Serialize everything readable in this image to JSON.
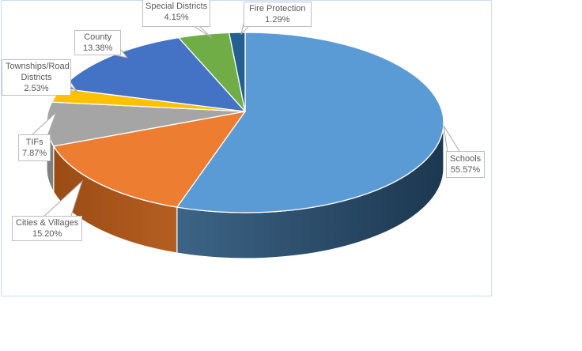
{
  "chart_data": {
    "type": "pie",
    "variant": "3d-pie",
    "direction": "clockwise",
    "start_angle_deg": 0,
    "labels_show": "category-name-and-percentage",
    "legend": "none",
    "points": [
      {
        "label": "Schools",
        "value": 55.57,
        "pct_label": "55.57%",
        "color": "#5B9BD5",
        "side_color": [
          "#3D6486",
          "#1C3750"
        ]
      },
      {
        "label": "Cities & Villages",
        "value": 15.2,
        "pct_label": "15.20%",
        "color": "#ED7D31",
        "side_color": [
          "#9A4C15",
          "#B55E21"
        ]
      },
      {
        "label": "TIFs",
        "value": 7.87,
        "pct_label": "7.87%",
        "color": "#A5A5A5",
        "side_color": [
          "#7F7F7F",
          "#7F7F7F"
        ]
      },
      {
        "label": "Townships/Road Districts",
        "value": 2.53,
        "pct_label": "2.53%",
        "color": "#FFC000",
        "side_color": null
      },
      {
        "label": "County",
        "value": 13.38,
        "pct_label": "13.38%",
        "color": "#4472C4",
        "side_color": null
      },
      {
        "label": "Special Districts",
        "value": 4.15,
        "pct_label": "4.15%",
        "color": "#70AD47",
        "side_color": null
      },
      {
        "label": "Fire Protection",
        "value": 1.29,
        "pct_label": "1.29%",
        "color": "#255E91",
        "side_color": null
      }
    ]
  },
  "colors": {
    "label_text": "#595959",
    "label_box_border": "#BFBFBF",
    "label_box_fill": "#FFFFFF",
    "leader_line": "#A9A9A9",
    "chart_area_border": "#CBDEF2",
    "background": "#FFFFFF"
  }
}
